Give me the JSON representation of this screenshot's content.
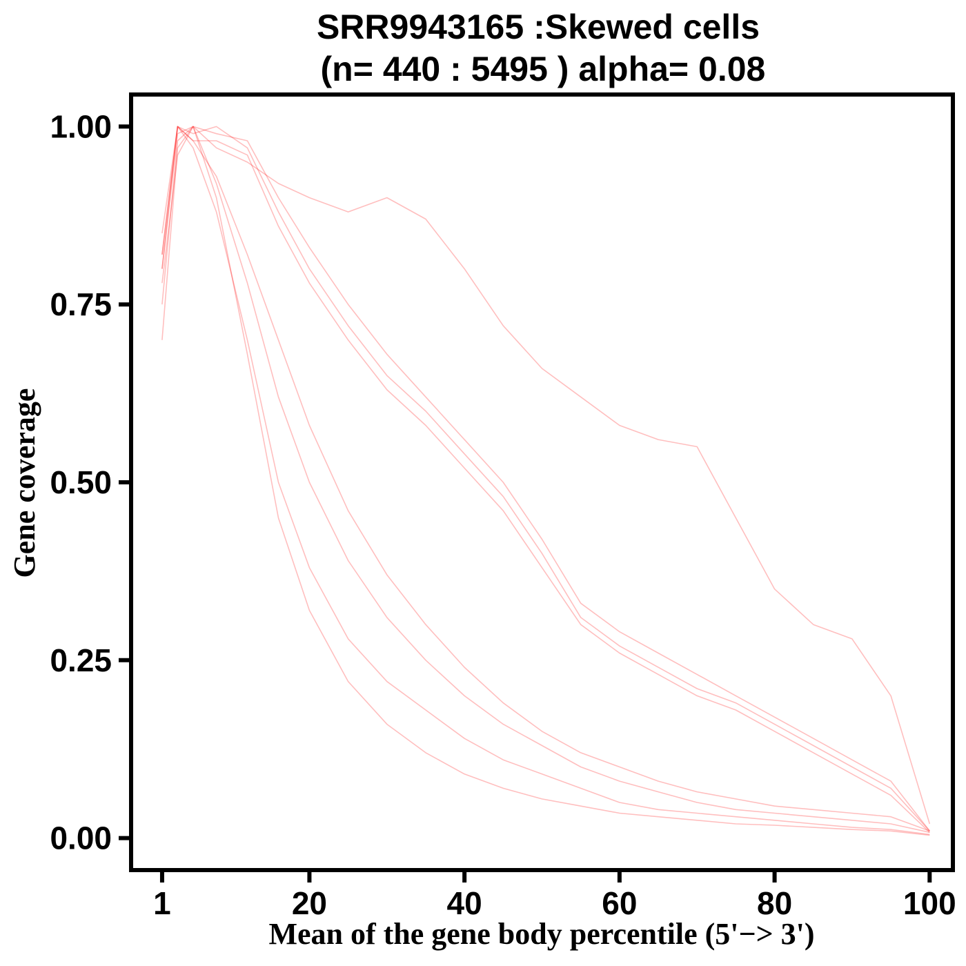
{
  "chart_data": {
    "type": "line",
    "title_line1": "SRR9943165 :Skewed cells",
    "title_line2": " (n= 440 : 5495 ) alpha= 0.08",
    "xlabel": "Mean of the gene body percentile (5'−> 3')",
    "ylabel": "Gene coverage",
    "xlim": [
      -3,
      103
    ],
    "ylim": [
      -0.045,
      1.045
    ],
    "x_ticks": [
      {
        "value": 1,
        "label": "1"
      },
      {
        "value": 20,
        "label": "20"
      },
      {
        "value": 40,
        "label": "40"
      },
      {
        "value": 60,
        "label": "60"
      },
      {
        "value": 80,
        "label": "80"
      },
      {
        "value": 100,
        "label": "100"
      }
    ],
    "y_ticks": [
      {
        "value": 0.0,
        "label": "0.00"
      },
      {
        "value": 0.25,
        "label": "0.25"
      },
      {
        "value": 0.5,
        "label": "0.50"
      },
      {
        "value": 0.75,
        "label": "0.75"
      },
      {
        "value": 1.0,
        "label": "1.00"
      }
    ],
    "line_color": "#ff0000",
    "line_alpha": 0.08,
    "x": [
      1,
      3,
      5,
      8,
      12,
      16,
      20,
      25,
      30,
      35,
      40,
      45,
      50,
      55,
      60,
      65,
      70,
      75,
      80,
      85,
      90,
      95,
      100
    ],
    "series": [
      {
        "group": "early-decay",
        "values": [
          0.8,
          1.0,
          0.97,
          0.88,
          0.7,
          0.5,
          0.38,
          0.28,
          0.22,
          0.18,
          0.14,
          0.11,
          0.09,
          0.07,
          0.05,
          0.04,
          0.035,
          0.03,
          0.025,
          0.02,
          0.015,
          0.012,
          0.005
        ]
      },
      {
        "group": "early-decay",
        "values": [
          0.75,
          0.98,
          1.0,
          0.92,
          0.78,
          0.62,
          0.5,
          0.39,
          0.31,
          0.25,
          0.2,
          0.16,
          0.13,
          0.1,
          0.08,
          0.065,
          0.05,
          0.04,
          0.035,
          0.03,
          0.025,
          0.02,
          0.008
        ]
      },
      {
        "group": "early-decay",
        "values": [
          0.7,
          0.97,
          1.0,
          0.9,
          0.68,
          0.45,
          0.32,
          0.22,
          0.16,
          0.12,
          0.09,
          0.07,
          0.055,
          0.045,
          0.035,
          0.03,
          0.025,
          0.02,
          0.018,
          0.015,
          0.012,
          0.01,
          0.004
        ]
      },
      {
        "group": "early-decay",
        "values": [
          0.82,
          1.0,
          0.98,
          0.93,
          0.82,
          0.7,
          0.58,
          0.46,
          0.37,
          0.3,
          0.24,
          0.19,
          0.15,
          0.12,
          0.1,
          0.08,
          0.065,
          0.055,
          0.045,
          0.04,
          0.035,
          0.03,
          0.01
        ]
      },
      {
        "group": "late-decay",
        "values": [
          0.85,
          1.0,
          0.99,
          1.0,
          0.97,
          0.88,
          0.8,
          0.72,
          0.65,
          0.6,
          0.54,
          0.48,
          0.4,
          0.31,
          0.27,
          0.24,
          0.21,
          0.19,
          0.16,
          0.13,
          0.1,
          0.07,
          0.01
        ]
      },
      {
        "group": "late-decay",
        "values": [
          0.8,
          0.99,
          1.0,
          0.99,
          0.98,
          0.9,
          0.83,
          0.75,
          0.68,
          0.62,
          0.56,
          0.5,
          0.42,
          0.33,
          0.29,
          0.26,
          0.23,
          0.2,
          0.17,
          0.14,
          0.11,
          0.08,
          0.01
        ]
      },
      {
        "group": "late-decay",
        "values": [
          0.82,
          1.0,
          0.98,
          0.98,
          0.96,
          0.86,
          0.78,
          0.7,
          0.63,
          0.58,
          0.52,
          0.46,
          0.38,
          0.3,
          0.26,
          0.23,
          0.2,
          0.18,
          0.15,
          0.12,
          0.09,
          0.06,
          0.008
        ]
      },
      {
        "group": "outlier",
        "values": [
          0.78,
          0.96,
          1.0,
          0.97,
          0.95,
          0.92,
          0.9,
          0.88,
          0.9,
          0.87,
          0.8,
          0.72,
          0.66,
          0.62,
          0.58,
          0.56,
          0.55,
          0.45,
          0.35,
          0.3,
          0.28,
          0.2,
          0.02
        ]
      }
    ]
  }
}
